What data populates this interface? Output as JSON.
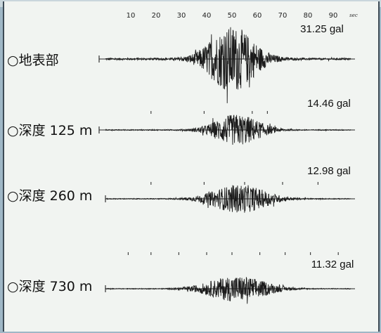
{
  "chart_data": {
    "type": "line",
    "title": "",
    "xlabel": "sec",
    "ylabel": "",
    "x_ticks": [
      10,
      20,
      30,
      40,
      50,
      60,
      70,
      80,
      90
    ],
    "x_unit": "sec",
    "xlim": [
      0,
      100
    ],
    "series": [
      {
        "name": "○地表部",
        "peak_label": "31.25 gal",
        "peak": 31.25,
        "envelope_center": 50,
        "envelope_width": 11
      },
      {
        "name": "○深度 125 m",
        "peak_label": "14.46 gal",
        "peak": 14.46,
        "envelope_center": 52,
        "envelope_width": 11
      },
      {
        "name": "○深度 260 m",
        "peak_label": "12.98 gal",
        "peak": 12.98,
        "envelope_center": 53,
        "envelope_width": 13
      },
      {
        "name": "○深度 730 m",
        "peak_label": "11.32 gal",
        "peak": 11.32,
        "envelope_center": 52,
        "envelope_width": 14
      }
    ]
  }
}
